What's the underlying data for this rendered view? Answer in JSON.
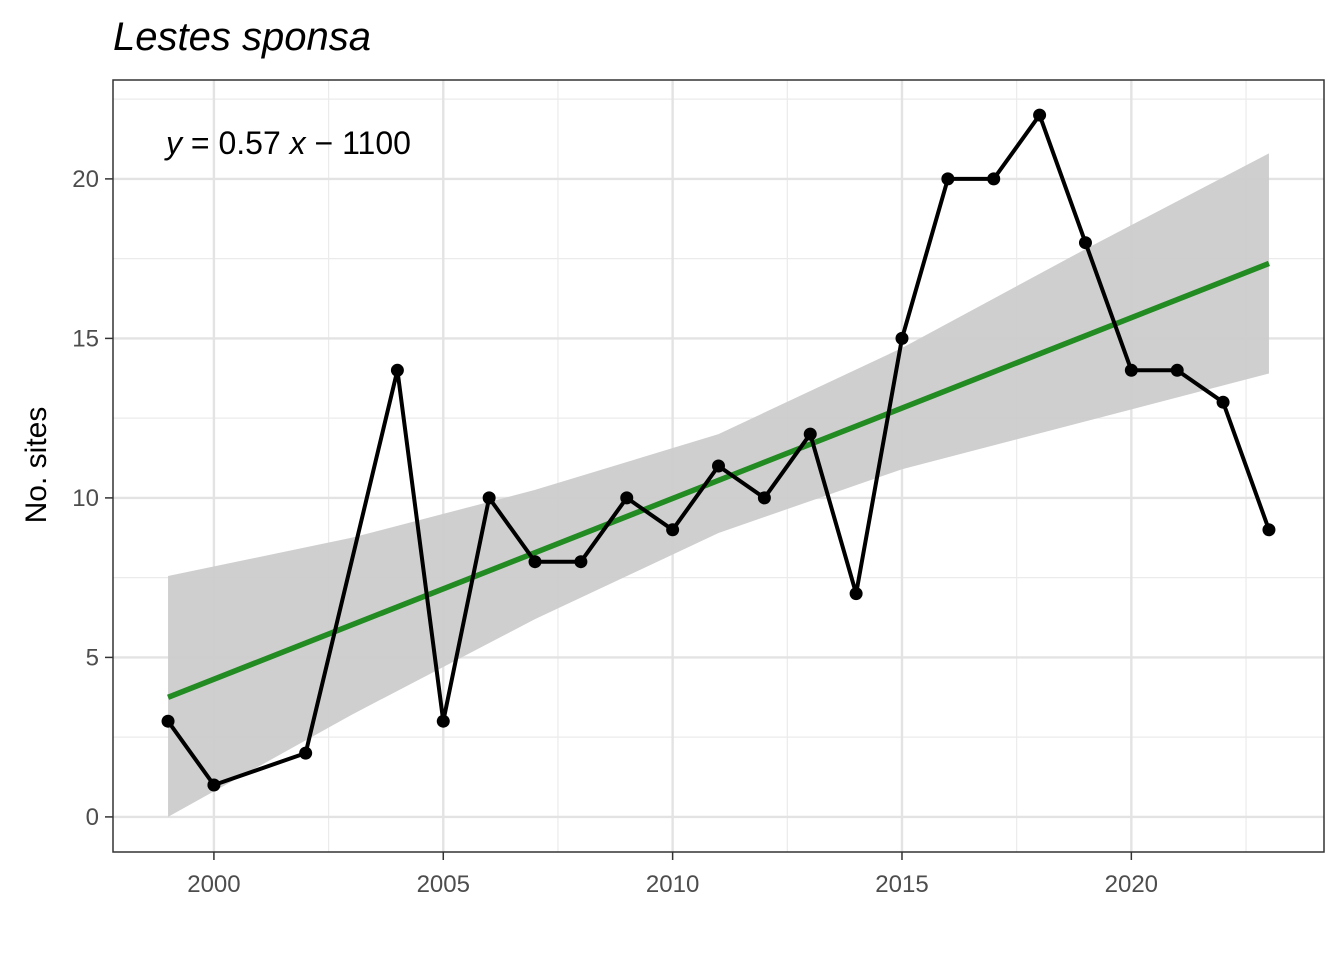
{
  "chart_data": {
    "type": "line",
    "title": "Lestes sponsa",
    "xlabel": "",
    "ylabel": "No. sites",
    "xlim": [
      1997.8,
      2024.2
    ],
    "ylim": [
      -1.1,
      23.1
    ],
    "x_ticks": [
      2000,
      2005,
      2010,
      2015,
      2020
    ],
    "y_ticks": [
      0,
      5,
      10,
      15,
      20
    ],
    "grid": true,
    "equation": {
      "y": "y",
      "rhs": " = 0.57 ",
      "x": "x",
      "tail": " − 1100"
    },
    "series": [
      {
        "x": [
          1999,
          2000,
          2002,
          2004,
          2005,
          2006,
          2007,
          2008,
          2009,
          2010,
          2011,
          2012,
          2013,
          2014,
          2015,
          2016,
          2017,
          2018,
          2019,
          2020,
          2021,
          2022,
          2023
        ],
        "values": [
          3,
          1,
          2,
          14,
          3,
          10,
          8,
          8,
          10,
          9,
          11,
          10,
          12,
          7,
          15,
          20,
          20,
          22,
          18,
          14,
          14,
          13,
          9
        ],
        "color": "#000000"
      }
    ],
    "trend": {
      "x": [
        1999,
        2023
      ],
      "values": [
        3.75,
        17.35
      ],
      "color": "#228B22"
    },
    "confidence_band": {
      "x": [
        1999,
        2003,
        2007,
        2011,
        2015,
        2019,
        2023
      ],
      "lower": [
        0.0,
        3.2,
        6.2,
        8.9,
        10.9,
        12.4,
        13.9
      ],
      "upper": [
        7.55,
        8.75,
        10.25,
        12.0,
        14.7,
        17.8,
        20.8
      ],
      "color": "#cccccc"
    }
  }
}
